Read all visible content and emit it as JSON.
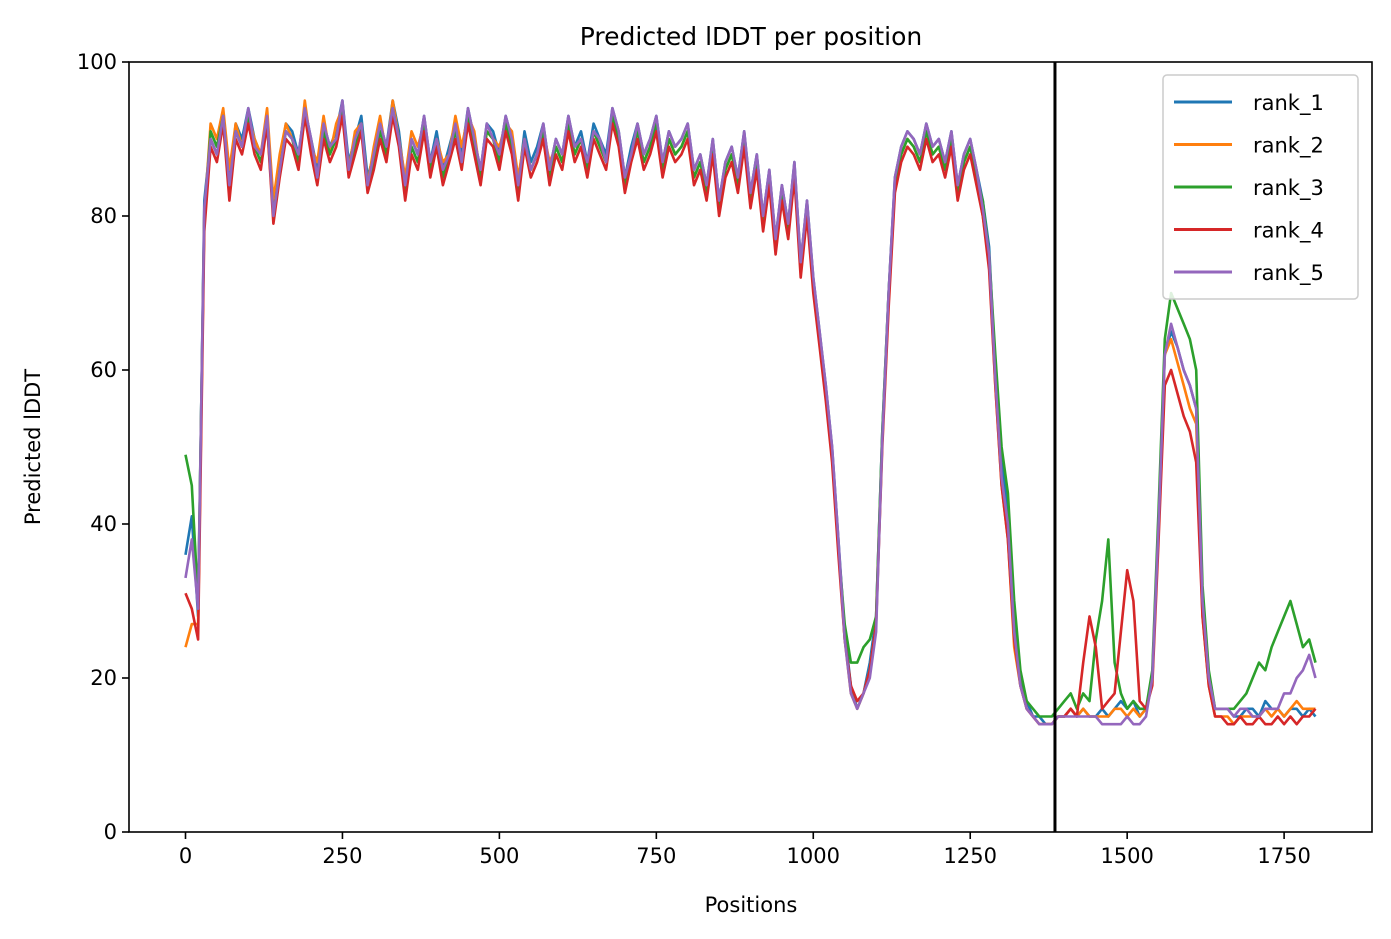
{
  "chart_data": {
    "type": "line",
    "title": "Predicted lDDT per position",
    "xlabel": "Positions",
    "ylabel": "Predicted lDDT",
    "xlim": [
      -90,
      1890
    ],
    "ylim": [
      0,
      100
    ],
    "xticks": [
      0,
      250,
      500,
      750,
      1000,
      1250,
      1500,
      1750
    ],
    "yticks": [
      0,
      20,
      40,
      60,
      80,
      100
    ],
    "grid": false,
    "legend_position": "top-right",
    "vline": {
      "x": 1385,
      "color": "#000000"
    },
    "x_start": 0,
    "x_step": 10,
    "series": [
      {
        "name": "rank_1",
        "color": "#1f77b4",
        "values": [
          36,
          41,
          28,
          82,
          90,
          88,
          93,
          84,
          92,
          90,
          94,
          90,
          88,
          93,
          81,
          87,
          92,
          91,
          88,
          94,
          90,
          86,
          92,
          89,
          91,
          95,
          87,
          90,
          93,
          85,
          88,
          92,
          89,
          95,
          91,
          84,
          90,
          88,
          93,
          87,
          91,
          86,
          89,
          92,
          88,
          94,
          90,
          86,
          92,
          91,
          88,
          93,
          90,
          84,
          91,
          87,
          89,
          92,
          86,
          90,
          88,
          93,
          89,
          91,
          87,
          92,
          90,
          88,
          94,
          91,
          85,
          89,
          92,
          88,
          90,
          93,
          87,
          91,
          89,
          90,
          92,
          86,
          88,
          84,
          90,
          82,
          87,
          89,
          85,
          91,
          83,
          88,
          80,
          86,
          77,
          84,
          79,
          87,
          74,
          82,
          72,
          65,
          58,
          50,
          38,
          26,
          19,
          16,
          18,
          22,
          28,
          52,
          70,
          85,
          89,
          91,
          90,
          88,
          92,
          89,
          90,
          87,
          91,
          84,
          88,
          90,
          86,
          82,
          76,
          60,
          48,
          42,
          28,
          20,
          17,
          15,
          15,
          14,
          14,
          15,
          15,
          16,
          15,
          16,
          15,
          15,
          16,
          15,
          16,
          17,
          16,
          17,
          15,
          16,
          20,
          40,
          62,
          65,
          63,
          60,
          58,
          55,
          30,
          20,
          16,
          16,
          16,
          15,
          15,
          16,
          16,
          15,
          17,
          16,
          16,
          15,
          16,
          16,
          15,
          16,
          15
        ]
      },
      {
        "name": "rank_2",
        "color": "#ff7f0e",
        "values": [
          24,
          27,
          27,
          80,
          92,
          90,
          94,
          86,
          92,
          89,
          93,
          90,
          88,
          94,
          82,
          88,
          92,
          90,
          87,
          95,
          89,
          87,
          93,
          88,
          92,
          94,
          86,
          91,
          92,
          84,
          89,
          93,
          88,
          95,
          90,
          85,
          91,
          89,
          92,
          86,
          90,
          87,
          88,
          93,
          89,
          93,
          91,
          85,
          91,
          90,
          89,
          92,
          91,
          85,
          90,
          86,
          88,
          91,
          87,
          89,
          87,
          92,
          88,
          90,
          86,
          91,
          89,
          87,
          93,
          90,
          84,
          88,
          91,
          87,
          89,
          92,
          86,
          90,
          88,
          89,
          91,
          85,
          87,
          83,
          89,
          81,
          86,
          88,
          84,
          90,
          82,
          87,
          79,
          85,
          76,
          83,
          78,
          86,
          73,
          81,
          71,
          64,
          57,
          49,
          37,
          25,
          18,
          16,
          18,
          21,
          27,
          51,
          69,
          84,
          88,
          90,
          89,
          87,
          91,
          88,
          89,
          86,
          90,
          83,
          87,
          89,
          85,
          80,
          74,
          58,
          45,
          38,
          24,
          19,
          16,
          15,
          14,
          14,
          14,
          15,
          15,
          16,
          15,
          16,
          15,
          15,
          15,
          15,
          16,
          16,
          15,
          16,
          15,
          16,
          20,
          40,
          62,
          64,
          61,
          58,
          55,
          53,
          28,
          19,
          15,
          15,
          15,
          14,
          15,
          15,
          15,
          15,
          16,
          15,
          16,
          15,
          16,
          17,
          16,
          16,
          16
        ]
      },
      {
        "name": "rank_3",
        "color": "#2ca02c",
        "values": [
          49,
          45,
          30,
          80,
          91,
          89,
          93,
          83,
          91,
          89,
          93,
          89,
          87,
          92,
          80,
          86,
          91,
          90,
          87,
          93,
          89,
          85,
          91,
          88,
          90,
          94,
          86,
          89,
          92,
          84,
          87,
          91,
          88,
          94,
          90,
          83,
          89,
          87,
          92,
          86,
          90,
          85,
          88,
          91,
          87,
          93,
          89,
          85,
          91,
          90,
          87,
          92,
          89,
          83,
          90,
          86,
          88,
          91,
          85,
          89,
          87,
          92,
          88,
          90,
          86,
          91,
          89,
          87,
          93,
          90,
          84,
          88,
          91,
          87,
          89,
          92,
          86,
          90,
          88,
          89,
          91,
          85,
          87,
          83,
          89,
          81,
          86,
          88,
          84,
          90,
          82,
          87,
          79,
          85,
          76,
          83,
          78,
          86,
          73,
          81,
          71,
          64,
          57,
          49,
          37,
          27,
          22,
          22,
          24,
          25,
          28,
          52,
          70,
          84,
          88,
          90,
          89,
          87,
          91,
          88,
          89,
          86,
          90,
          83,
          87,
          89,
          85,
          82,
          75,
          62,
          50,
          44,
          30,
          21,
          17,
          16,
          15,
          15,
          15,
          16,
          17,
          18,
          16,
          18,
          17,
          25,
          30,
          38,
          22,
          18,
          16,
          17,
          16,
          16,
          21,
          42,
          64,
          70,
          68,
          66,
          64,
          60,
          32,
          21,
          16,
          16,
          16,
          16,
          17,
          18,
          20,
          22,
          21,
          24,
          26,
          28,
          30,
          27,
          24,
          25,
          22
        ]
      },
      {
        "name": "rank_4",
        "color": "#d62728",
        "values": [
          31,
          29,
          25,
          78,
          89,
          87,
          92,
          82,
          90,
          88,
          92,
          88,
          86,
          92,
          79,
          85,
          90,
          89,
          86,
          93,
          88,
          84,
          90,
          87,
          89,
          93,
          85,
          88,
          91,
          83,
          86,
          90,
          87,
          93,
          89,
          82,
          88,
          86,
          91,
          85,
          89,
          84,
          87,
          90,
          86,
          92,
          88,
          84,
          90,
          89,
          86,
          91,
          88,
          82,
          89,
          85,
          87,
          90,
          84,
          88,
          86,
          91,
          87,
          89,
          85,
          90,
          88,
          86,
          92,
          89,
          83,
          87,
          90,
          86,
          88,
          91,
          85,
          89,
          87,
          88,
          90,
          84,
          86,
          82,
          88,
          80,
          85,
          87,
          83,
          89,
          81,
          86,
          78,
          84,
          75,
          82,
          77,
          85,
          72,
          80,
          70,
          63,
          56,
          48,
          36,
          25,
          19,
          17,
          18,
          21,
          27,
          50,
          68,
          83,
          87,
          89,
          88,
          86,
          90,
          87,
          88,
          85,
          89,
          82,
          86,
          88,
          84,
          80,
          73,
          58,
          45,
          38,
          25,
          19,
          16,
          15,
          14,
          14,
          14,
          15,
          15,
          16,
          15,
          22,
          28,
          24,
          16,
          17,
          18,
          26,
          34,
          30,
          17,
          16,
          19,
          38,
          58,
          60,
          57,
          54,
          52,
          48,
          28,
          19,
          15,
          15,
          14,
          14,
          15,
          14,
          14,
          15,
          14,
          14,
          15,
          14,
          15,
          14,
          15,
          15,
          16
        ]
      },
      {
        "name": "rank_5",
        "color": "#9467bd",
        "values": [
          33,
          38,
          29,
          81,
          90,
          88,
          93,
          84,
          91,
          89,
          94,
          89,
          88,
          93,
          80,
          86,
          91,
          90,
          88,
          94,
          90,
          85,
          92,
          89,
          90,
          95,
          86,
          90,
          92,
          84,
          88,
          92,
          89,
          94,
          90,
          84,
          90,
          88,
          93,
          87,
          90,
          86,
          88,
          92,
          87,
          94,
          90,
          86,
          92,
          90,
          88,
          93,
          90,
          84,
          90,
          86,
          88,
          92,
          86,
          90,
          88,
          93,
          89,
          90,
          87,
          91,
          90,
          87,
          94,
          91,
          85,
          88,
          92,
          88,
          90,
          93,
          87,
          91,
          89,
          90,
          92,
          86,
          88,
          84,
          90,
          82,
          87,
          89,
          85,
          91,
          83,
          88,
          80,
          86,
          77,
          84,
          79,
          87,
          74,
          82,
          72,
          65,
          58,
          50,
          38,
          25,
          18,
          16,
          18,
          20,
          26,
          51,
          70,
          85,
          89,
          91,
          90,
          88,
          92,
          89,
          90,
          87,
          91,
          84,
          88,
          90,
          86,
          81,
          75,
          59,
          46,
          40,
          26,
          19,
          16,
          15,
          14,
          14,
          14,
          15,
          15,
          15,
          15,
          15,
          15,
          15,
          14,
          14,
          14,
          14,
          15,
          14,
          14,
          15,
          20,
          40,
          62,
          66,
          63,
          60,
          58,
          55,
          30,
          20,
          16,
          16,
          16,
          15,
          16,
          16,
          15,
          15,
          16,
          16,
          16,
          18,
          18,
          20,
          21,
          23,
          20
        ]
      }
    ]
  }
}
